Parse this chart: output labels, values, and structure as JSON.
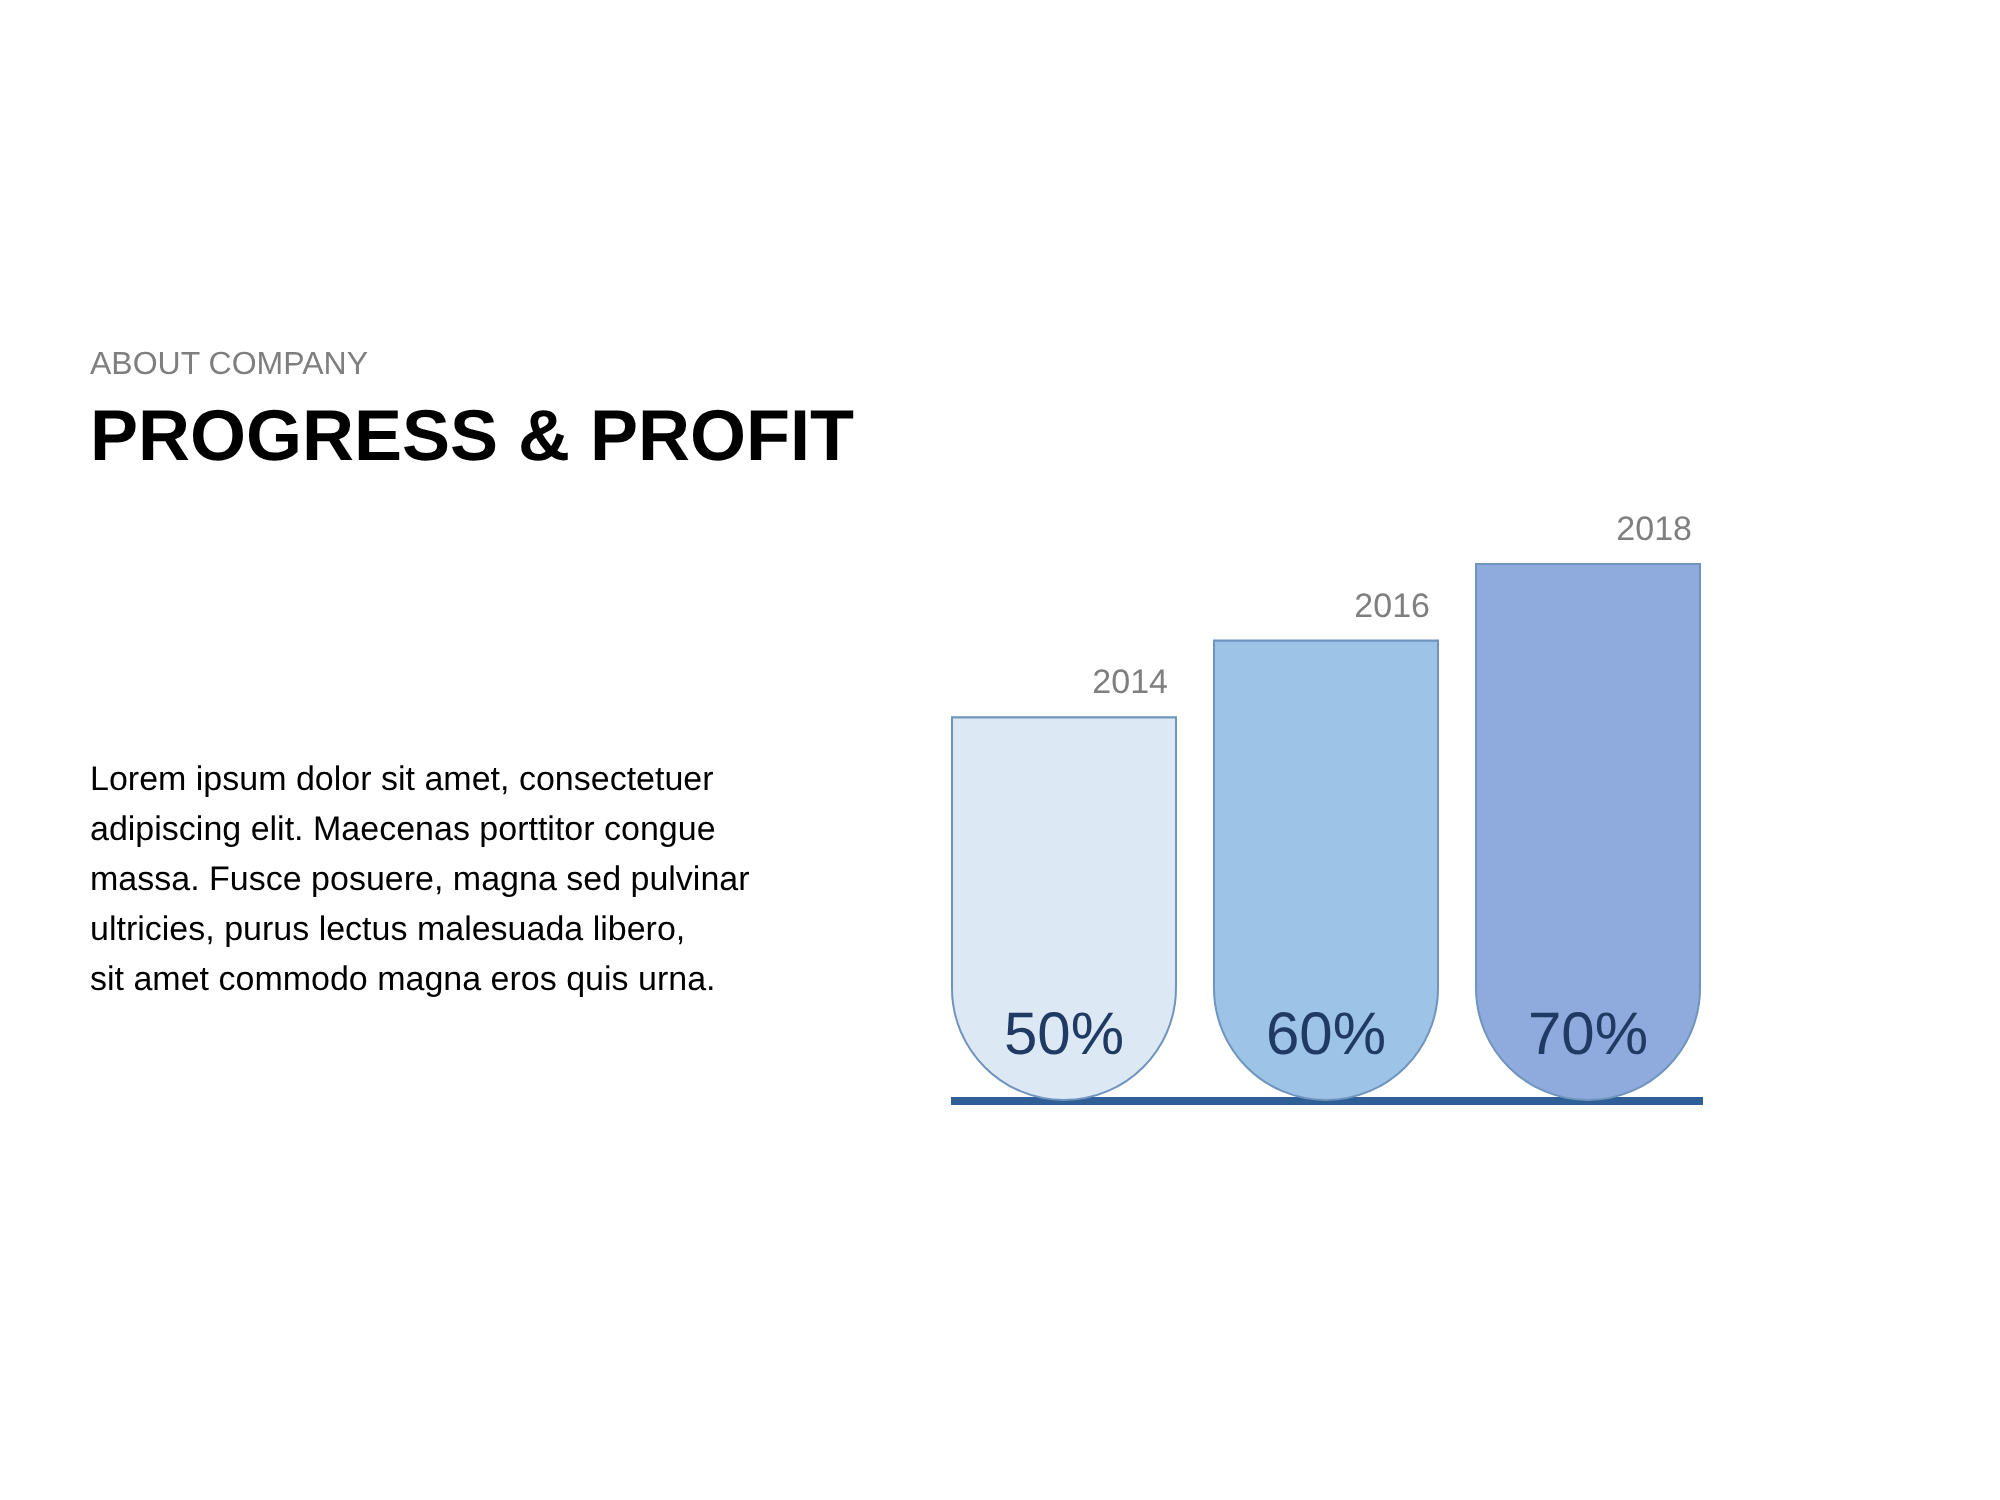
{
  "chart_data": {
    "type": "bar",
    "title": "PROGRESS & PROFIT",
    "subtitle": "ABOUT COMPANY",
    "annotations": [
      "Lorem ipsum dolor sit amet, consectetuer adipiscing elit. Maecenas porttitor congue massa. Fusce posuere, magna sed pulvinar ultricies, purus lectus malesuada libero, sit amet commodo magna eros quis urna."
    ],
    "categories": [
      "2014",
      "2016",
      "2018"
    ],
    "values": [
      50,
      60,
      70
    ],
    "colors": [
      "#dde8f5",
      "#9dc3e6",
      "#8faadc"
    ],
    "value_labels": [
      "50%",
      "60%",
      "70%"
    ],
    "grid": false
  }
}
